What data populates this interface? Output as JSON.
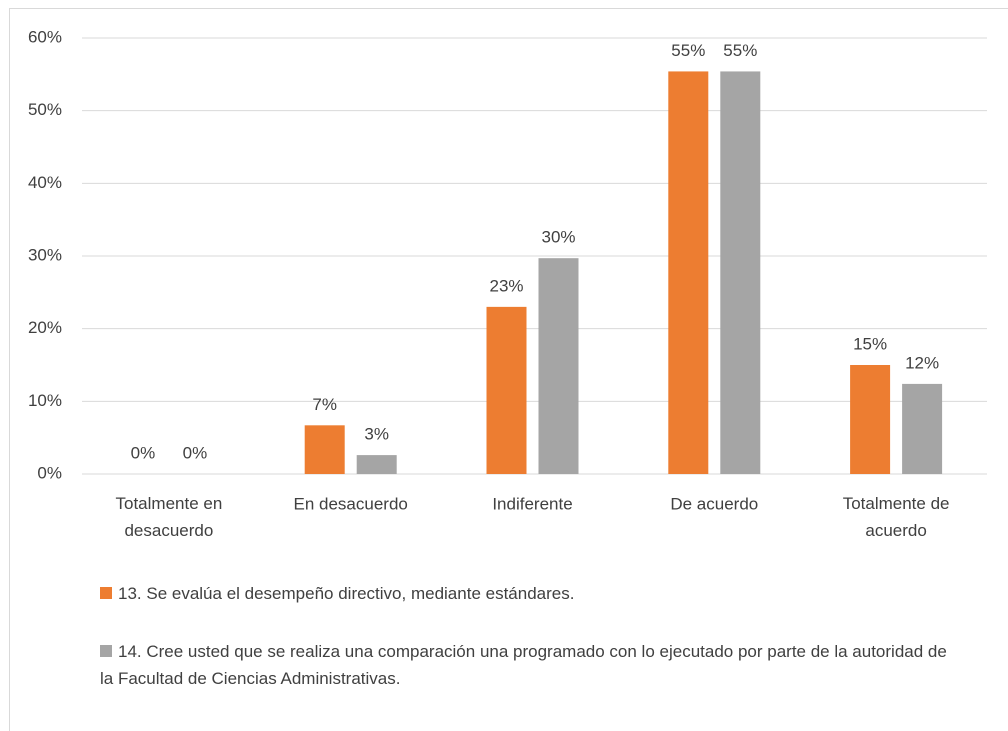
{
  "chart_data": {
    "type": "bar",
    "categories": [
      "Totalmente en desacuerdo",
      "En desacuerdo",
      "Indiferente",
      "De acuerdo",
      "Totalmente de acuerdo"
    ],
    "series": [
      {
        "name": "13. Se evalúa el desempeño directivo, mediante estándares.",
        "color": "#ed7d31",
        "values": [
          0,
          6.7,
          23.0,
          55.4,
          15.0
        ],
        "value_labels": [
          "0%",
          "7%",
          "23%",
          "55%",
          "15%"
        ]
      },
      {
        "name": "14. Cree usted que se realiza una comparación una programado con lo ejecutado por parte de la autoridad de la Facultad de Ciencias Administrativas.",
        "color": "#a5a5a5",
        "values": [
          0,
          2.6,
          29.7,
          55.4,
          12.4
        ],
        "value_labels": [
          "0%",
          "3%",
          "30%",
          "55%",
          "12%"
        ]
      }
    ],
    "ylim": [
      0,
      60
    ],
    "yticks": [
      {
        "value": 0,
        "label": "0%"
      },
      {
        "value": 10,
        "label": "10%"
      },
      {
        "value": 20,
        "label": "20%"
      },
      {
        "value": 30,
        "label": "30%"
      },
      {
        "value": 40,
        "label": "40%"
      },
      {
        "value": 50,
        "label": "50%"
      },
      {
        "value": 60,
        "label": "60%"
      }
    ],
    "grid": true,
    "legend": "bottom"
  }
}
